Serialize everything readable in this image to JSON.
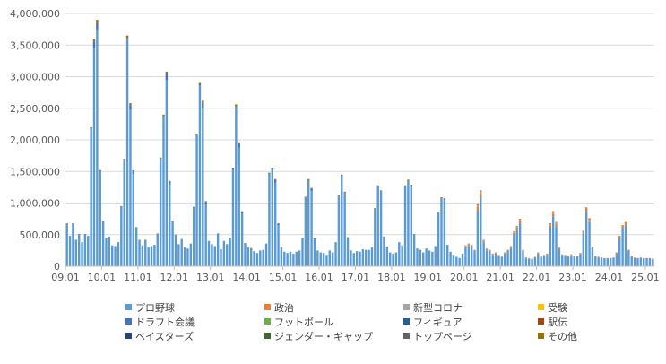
{
  "chart_data": {
    "type": "bar",
    "stacked": true,
    "title": "",
    "xlabel": "",
    "ylabel": "",
    "ylim": [
      0,
      4000000
    ],
    "y_ticks": [
      "0",
      "500,000",
      "1,000,000",
      "1,500,000",
      "2,000,000",
      "2,500,000",
      "3,000,000",
      "3,500,000",
      "4,000,000"
    ],
    "x_ticks": [
      "09.01",
      "10.01",
      "11.01",
      "12.01",
      "13.01",
      "14.01",
      "15.01",
      "16.01",
      "17.01",
      "18.01",
      "19.01",
      "20.01",
      "21.01",
      "22.01",
      "23.01",
      "24.01",
      "25.01"
    ],
    "x_range": [
      "09.01",
      "25.03"
    ],
    "grid": "horizontal",
    "legend_position": "bottom",
    "series": [
      {
        "name": "プロ野球",
        "color": "#5B9BD5"
      },
      {
        "name": "政治",
        "color": "#ED7D31"
      },
      {
        "name": "新型コロナ",
        "color": "#A5A5A5"
      },
      {
        "name": "受験",
        "color": "#FFC000"
      },
      {
        "name": "ドラフト会議",
        "color": "#4472C4"
      },
      {
        "name": "フットボール",
        "color": "#70AD47"
      },
      {
        "name": "フィギュア",
        "color": "#255E91"
      },
      {
        "name": "駅伝",
        "color": "#9E480E"
      },
      {
        "name": "ベイスターズ",
        "color": "#264478"
      },
      {
        "name": "ジェンダー・ギャップ",
        "color": "#43682B"
      },
      {
        "name": "トップページ",
        "color": "#636363"
      },
      {
        "name": "その他",
        "color": "#997300"
      }
    ],
    "months": [
      "09.01",
      "09.02",
      "09.03",
      "09.04",
      "09.05",
      "09.06",
      "09.07",
      "09.08",
      "09.09",
      "09.10",
      "09.11",
      "09.12",
      "10.01",
      "10.02",
      "10.03",
      "10.04",
      "10.05",
      "10.06",
      "10.07",
      "10.08",
      "10.09",
      "10.10",
      "10.11",
      "10.12",
      "11.01",
      "11.02",
      "11.03",
      "11.04",
      "11.05",
      "11.06",
      "11.07",
      "11.08",
      "11.09",
      "11.10",
      "11.11",
      "11.12",
      "12.01",
      "12.02",
      "12.03",
      "12.04",
      "12.05",
      "12.06",
      "12.07",
      "12.08",
      "12.09",
      "12.10",
      "12.11",
      "12.12",
      "13.01",
      "13.02",
      "13.03",
      "13.04",
      "13.05",
      "13.06",
      "13.07",
      "13.08",
      "13.09",
      "13.10",
      "13.11",
      "13.12",
      "14.01",
      "14.02",
      "14.03",
      "14.04",
      "14.05",
      "14.06",
      "14.07",
      "14.08",
      "14.09",
      "14.10",
      "14.11",
      "14.12",
      "15.01",
      "15.02",
      "15.03",
      "15.04",
      "15.05",
      "15.06",
      "15.07",
      "15.08",
      "15.09",
      "15.10",
      "15.11",
      "15.12",
      "16.01",
      "16.02",
      "16.03",
      "16.04",
      "16.05",
      "16.06",
      "16.07",
      "16.08",
      "16.09",
      "16.10",
      "16.11",
      "16.12",
      "17.01",
      "17.02",
      "17.03",
      "17.04",
      "17.05",
      "17.06",
      "17.07",
      "17.08",
      "17.09",
      "17.10",
      "17.11",
      "17.12",
      "18.01",
      "18.02",
      "18.03",
      "18.04",
      "18.05",
      "18.06",
      "18.07",
      "18.08",
      "18.09",
      "18.10",
      "18.11",
      "18.12",
      "19.01",
      "19.02",
      "19.03",
      "19.04",
      "19.05",
      "19.06",
      "19.07",
      "19.08",
      "19.09",
      "19.10",
      "19.11",
      "19.12",
      "20.01",
      "20.02",
      "20.03",
      "20.04",
      "20.05",
      "20.06",
      "20.07",
      "20.08",
      "20.09",
      "20.10",
      "20.11",
      "20.12",
      "21.01",
      "21.02",
      "21.03",
      "21.04",
      "21.05",
      "21.06",
      "21.07",
      "21.08",
      "21.09",
      "21.10",
      "21.11",
      "21.12",
      "22.01",
      "22.02",
      "22.03",
      "22.04",
      "22.05",
      "22.06",
      "22.07",
      "22.08",
      "22.09",
      "22.10",
      "22.11",
      "22.12",
      "23.01",
      "23.02",
      "23.03",
      "23.04",
      "23.05",
      "23.06",
      "23.07",
      "23.08",
      "23.09",
      "23.10",
      "23.11",
      "23.12",
      "24.01",
      "24.02",
      "24.03",
      "24.04",
      "24.05",
      "24.06",
      "24.07",
      "24.08",
      "24.09",
      "24.10",
      "24.11",
      "24.12",
      "25.01",
      "25.02",
      "25.03"
    ],
    "totals": [
      680000,
      480000,
      680000,
      420000,
      510000,
      380000,
      510000,
      480000,
      2200000,
      3600000,
      3900000,
      1520000,
      710000,
      450000,
      470000,
      330000,
      320000,
      380000,
      950000,
      1700000,
      3650000,
      2580000,
      1520000,
      620000,
      420000,
      330000,
      420000,
      300000,
      320000,
      340000,
      520000,
      1720000,
      2400000,
      3080000,
      1350000,
      720000,
      500000,
      350000,
      430000,
      300000,
      280000,
      360000,
      940000,
      2100000,
      2900000,
      2620000,
      1030000,
      400000,
      350000,
      320000,
      520000,
      270000,
      400000,
      350000,
      450000,
      1560000,
      2560000,
      1960000,
      870000,
      370000,
      300000,
      290000,
      240000,
      210000,
      250000,
      260000,
      360000,
      1480000,
      1560000,
      1380000,
      680000,
      300000,
      230000,
      210000,
      230000,
      200000,
      230000,
      250000,
      450000,
      1100000,
      1380000,
      1240000,
      440000,
      250000,
      220000,
      210000,
      180000,
      250000,
      220000,
      380000,
      1130000,
      1450000,
      1180000,
      460000,
      250000,
      210000,
      240000,
      230000,
      270000,
      260000,
      260000,
      300000,
      920000,
      1280000,
      1200000,
      470000,
      310000,
      220000,
      200000,
      220000,
      380000,
      330000,
      1280000,
      1370000,
      1290000,
      510000,
      280000,
      260000,
      220000,
      280000,
      250000,
      230000,
      320000,
      860000,
      1090000,
      1080000,
      340000,
      230000,
      180000,
      150000,
      130000,
      200000,
      330000,
      360000,
      340000,
      260000,
      980000,
      1200000,
      420000,
      280000,
      260000,
      200000,
      220000,
      180000,
      160000,
      220000,
      260000,
      320000,
      550000,
      640000,
      750000,
      260000,
      140000,
      130000,
      120000,
      150000,
      220000,
      160000,
      180000,
      200000,
      680000,
      870000,
      700000,
      300000,
      190000,
      180000,
      170000,
      190000,
      170000,
      160000,
      210000,
      560000,
      930000,
      760000,
      310000,
      160000,
      150000,
      140000,
      130000,
      130000,
      130000,
      140000,
      220000,
      480000,
      650000,
      700000,
      260000,
      160000,
      140000,
      130000,
      140000,
      130000,
      130000,
      130000,
      120000
    ]
  },
  "legend": {
    "items": [
      "プロ野球",
      "政治",
      "新型コロナ",
      "受験",
      "ドラフト会議",
      "フットボール",
      "フィギュア",
      "駅伝",
      "ベイスターズ",
      "ジェンダー・ギャップ",
      "トップページ",
      "その他"
    ]
  }
}
